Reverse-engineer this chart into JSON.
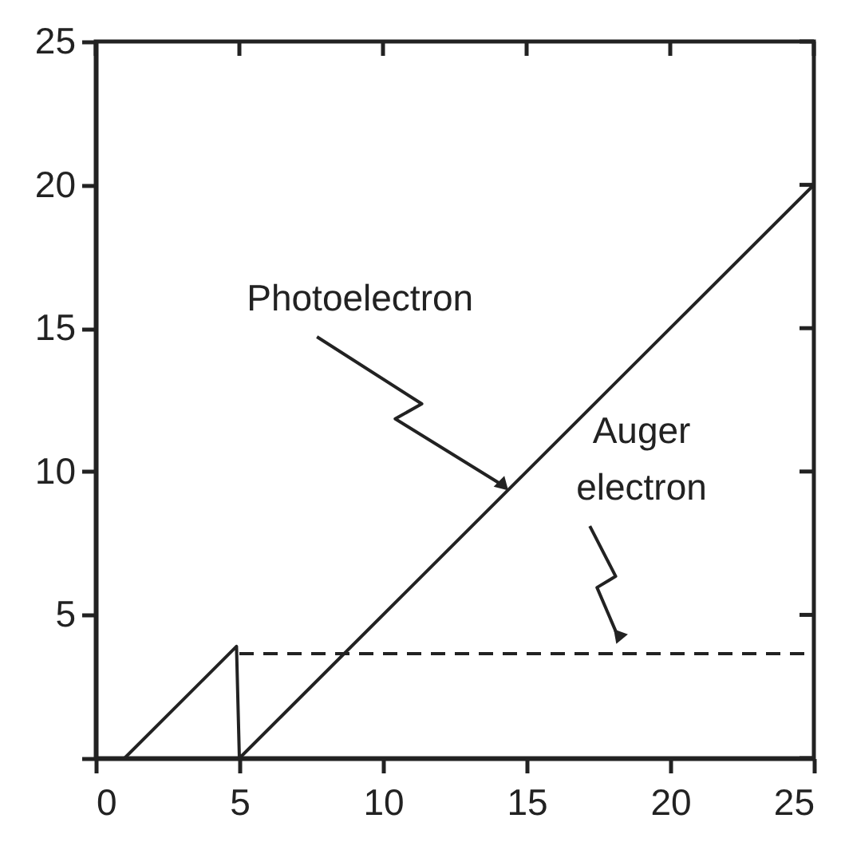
{
  "chart_data": {
    "type": "line",
    "xlim": [
      0,
      25
    ],
    "ylim": [
      0,
      25
    ],
    "xticks": [
      0,
      5,
      10,
      15,
      20,
      25
    ],
    "yticks": [
      {
        "value": 0,
        "label": null
      },
      5,
      10,
      15,
      20,
      25
    ],
    "series": [
      {
        "color": "#222222",
        "line_style": "solid",
        "x": [
          1,
          4.9,
          5,
          25
        ],
        "values": [
          0,
          3.9,
          0,
          20
        ]
      },
      {
        "color": "#222222",
        "line_style": "dashed",
        "x": [
          5,
          25
        ],
        "values": [
          3.65,
          3.65
        ]
      }
    ],
    "annotations": [
      {
        "text": "Photoelectron",
        "x": 14.2,
        "y": 9.5
      },
      {
        "text": "Auger electron",
        "x": 18.2,
        "y": 4.2
      }
    ]
  }
}
